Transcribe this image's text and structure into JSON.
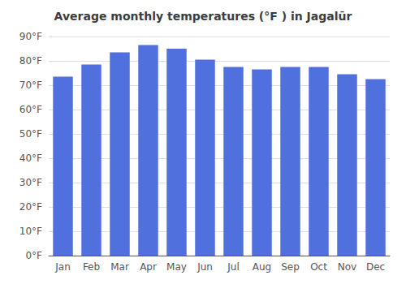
{
  "chart_data": {
    "type": "bar",
    "title": "Average monthly temperatures (°F ) in Jagalūr",
    "categories": [
      "Jan",
      "Feb",
      "Mar",
      "Apr",
      "May",
      "Jun",
      "Jul",
      "Aug",
      "Sep",
      "Oct",
      "Nov",
      "Dec"
    ],
    "values": [
      73.5,
      78.5,
      83.5,
      86.5,
      85.0,
      80.5,
      77.5,
      76.5,
      77.5,
      77.5,
      74.5,
      72.5
    ],
    "ylim": [
      0,
      90
    ],
    "yticks": [
      {
        "value": 0,
        "label": "0°F"
      },
      {
        "value": 10,
        "label": "10°F"
      },
      {
        "value": 20,
        "label": "20°F"
      },
      {
        "value": 30,
        "label": "30°F"
      },
      {
        "value": 40,
        "label": "40°F"
      },
      {
        "value": 50,
        "label": "50°F"
      },
      {
        "value": 60,
        "label": "60°F"
      },
      {
        "value": 70,
        "label": "70°F"
      },
      {
        "value": 80,
        "label": "80°F"
      },
      {
        "value": 90,
        "label": "90°F"
      }
    ],
    "grid": true
  }
}
